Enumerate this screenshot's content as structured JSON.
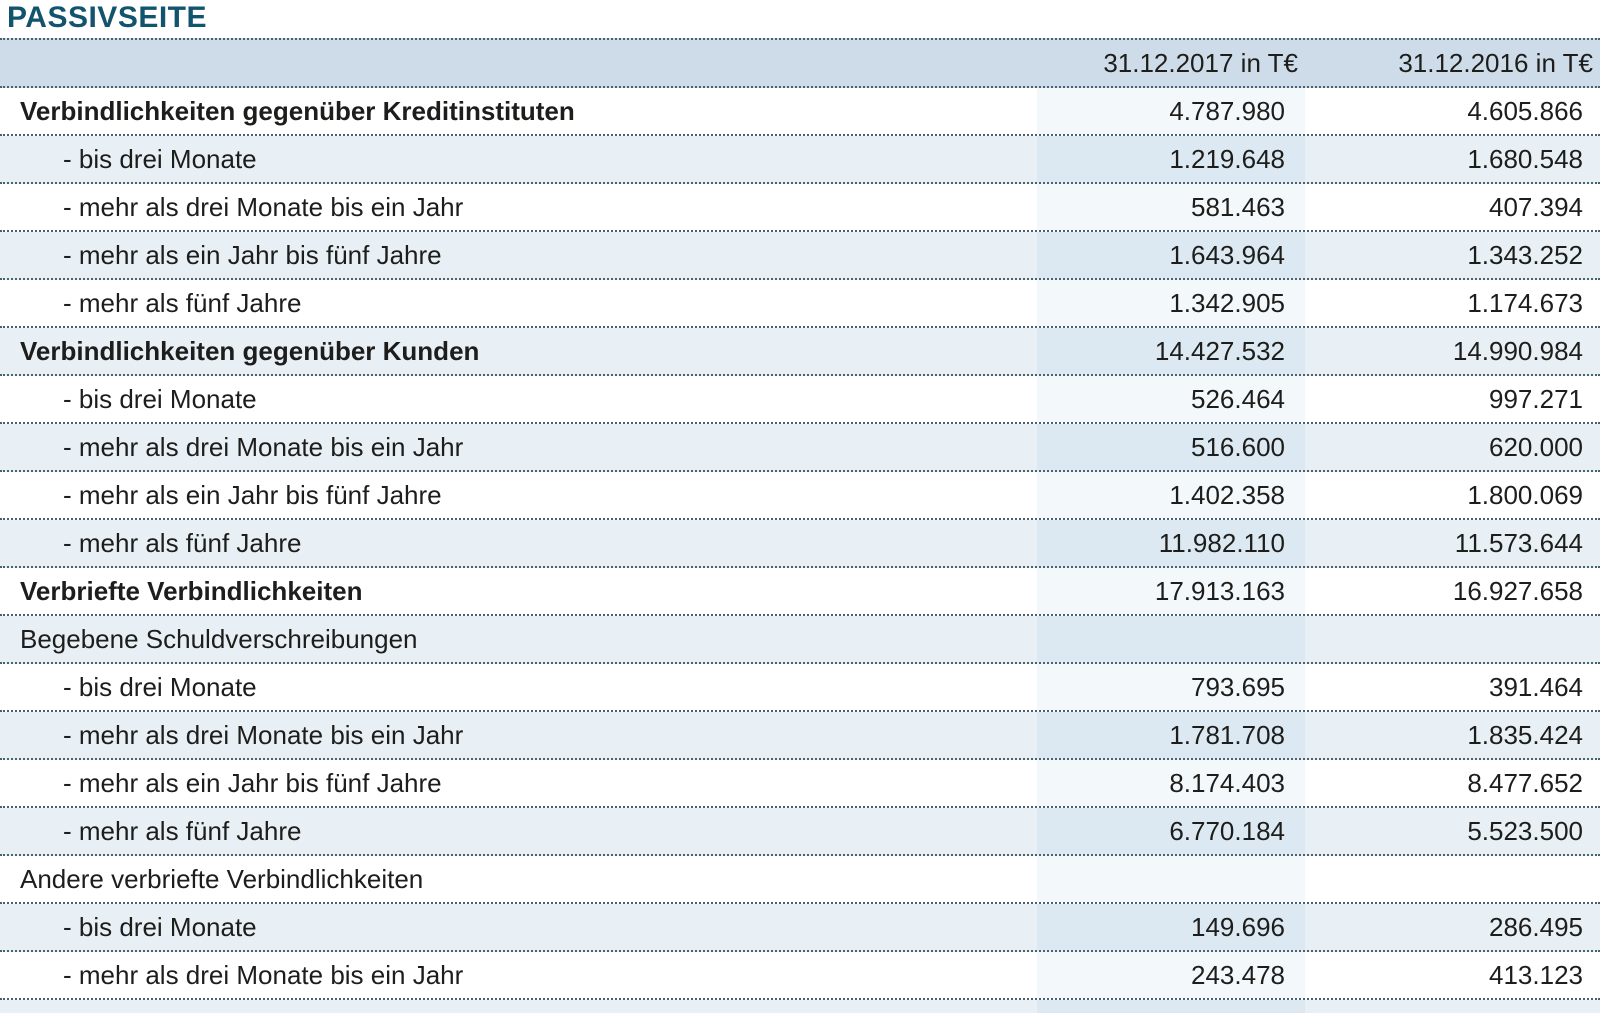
{
  "page": {
    "title": "PASSIVSEITE"
  },
  "colors": {
    "title-color": "#12536e",
    "header-bg": "#cddce8",
    "row-alt-bg": "#e8f0f6",
    "row-alt-band-bg": "#dce9f2",
    "row-band-bg": "#f3f8fa",
    "dot-color": "#4a6270",
    "text-color": "#1d1d1b"
  },
  "table": {
    "columns": [
      "",
      "31.12.2017 in T€",
      "31.12.2016 in T€"
    ],
    "rows": [
      {
        "label": "Verbindlichkeiten gegenüber Kreditinstituten",
        "v2017": "4.787.980",
        "v2016": "4.605.866",
        "style": "section"
      },
      {
        "label": "- bis drei Monate",
        "v2017": "1.219.648",
        "v2016": "1.680.548",
        "style": "item"
      },
      {
        "label": "- mehr als drei Monate bis ein Jahr",
        "v2017": "581.463",
        "v2016": "407.394",
        "style": "item"
      },
      {
        "label": "- mehr als ein Jahr bis fünf Jahre",
        "v2017": "1.643.964",
        "v2016": "1.343.252",
        "style": "item"
      },
      {
        "label": "- mehr als fünf Jahre",
        "v2017": "1.342.905",
        "v2016": "1.174.673",
        "style": "item"
      },
      {
        "label": "Verbindlichkeiten gegenüber Kunden",
        "v2017": "14.427.532",
        "v2016": "14.990.984",
        "style": "section"
      },
      {
        "label": "- bis drei Monate",
        "v2017": "526.464",
        "v2016": "997.271",
        "style": "item"
      },
      {
        "label": "- mehr als drei Monate bis ein Jahr",
        "v2017": "516.600",
        "v2016": "620.000",
        "style": "item"
      },
      {
        "label": "- mehr als ein Jahr bis fünf Jahre",
        "v2017": "1.402.358",
        "v2016": "1.800.069",
        "style": "item"
      },
      {
        "label": "- mehr als fünf Jahre",
        "v2017": "11.982.110",
        "v2016": "11.573.644",
        "style": "item"
      },
      {
        "label": "Verbriefte Verbindlichkeiten",
        "v2017": "17.913.163",
        "v2016": "16.927.658",
        "style": "section"
      },
      {
        "label": "Begebene Schuldverschreibungen",
        "v2017": "",
        "v2016": "",
        "style": "subheading"
      },
      {
        "label": "- bis drei Monate",
        "v2017": "793.695",
        "v2016": "391.464",
        "style": "item"
      },
      {
        "label": "- mehr als drei Monate bis ein Jahr",
        "v2017": "1.781.708",
        "v2016": "1.835.424",
        "style": "item"
      },
      {
        "label": "- mehr als ein Jahr bis fünf Jahre",
        "v2017": "8.174.403",
        "v2016": "8.477.652",
        "style": "item"
      },
      {
        "label": "- mehr als fünf Jahre",
        "v2017": "6.770.184",
        "v2016": "5.523.500",
        "style": "item"
      },
      {
        "label": "Andere verbriefte Verbindlichkeiten",
        "v2017": "",
        "v2016": "",
        "style": "subheading"
      },
      {
        "label": "- bis drei Monate",
        "v2017": "149.696",
        "v2016": "286.495",
        "style": "item"
      },
      {
        "label": "- mehr als drei Monate bis ein Jahr",
        "v2017": "243.478",
        "v2016": "413.123",
        "style": "item"
      }
    ]
  }
}
